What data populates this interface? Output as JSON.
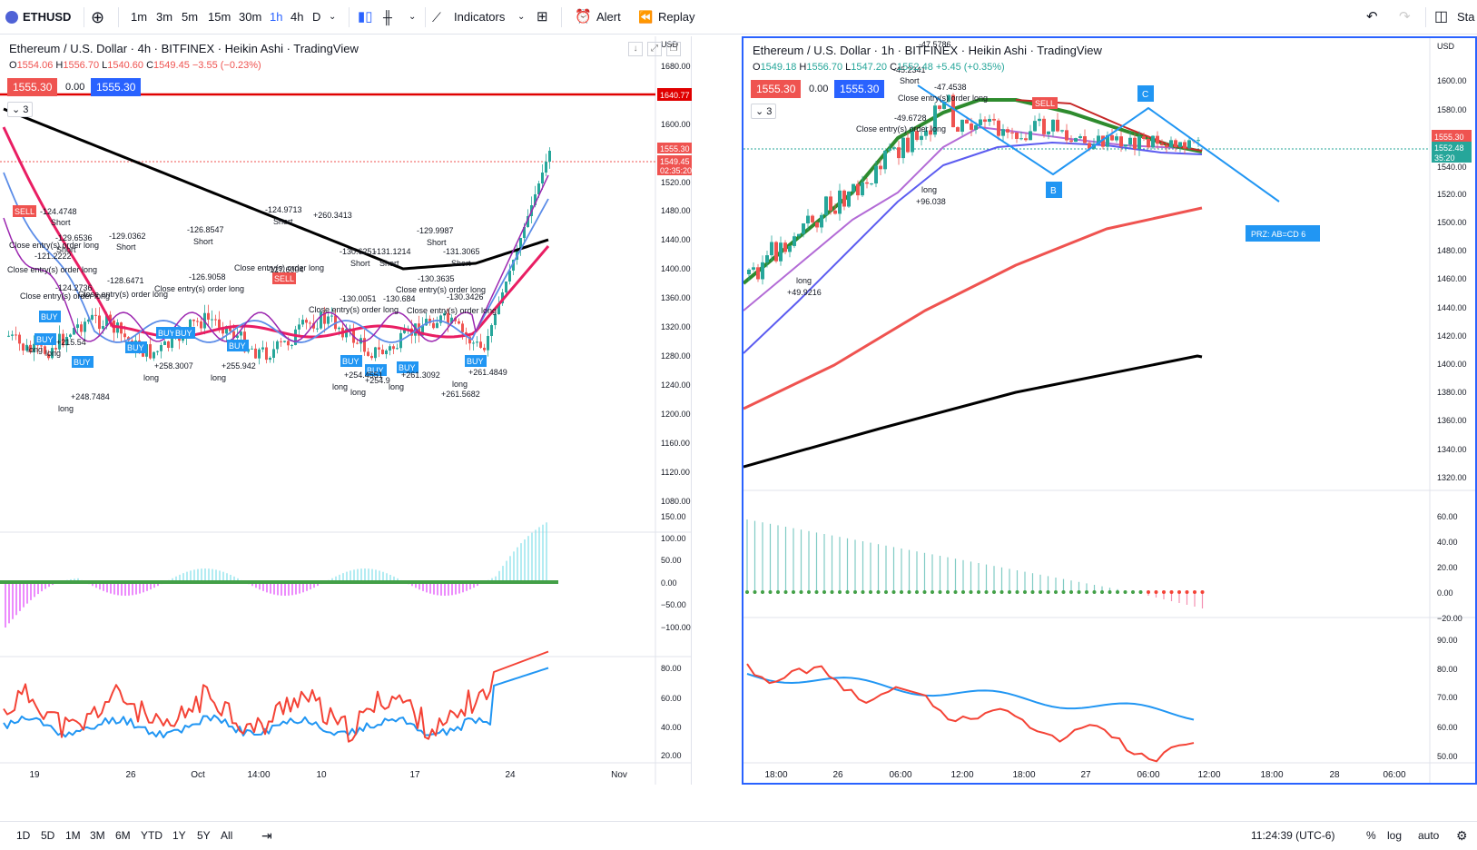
{
  "toolbar": {
    "symbol": "ETHUSD",
    "intervals": [
      "1m",
      "3m",
      "5m",
      "15m",
      "30m",
      "1h",
      "4h",
      "D"
    ],
    "active_interval": "1h",
    "indicators_label": "Indicators",
    "alert_label": "Alert",
    "replay_label": "Replay",
    "right_label": "Sta"
  },
  "left_chart": {
    "title": "Ethereum / U.S. Dollar · 4h · BITFINEX · Heikin Ashi · TradingView",
    "ohlc": {
      "o": "1554.06",
      "h": "1556.70",
      "l": "1540.60",
      "c": "1549.45",
      "chg": "−3.55 (−0.23%)"
    },
    "sell_price": "1555.30",
    "spread": "0.00",
    "buy_price": "1555.30",
    "counter": "3",
    "currency": "USD",
    "price_ticks": [
      "1680.00",
      "1640.77",
      "1600.00",
      "1555.30",
      "1549.45",
      "02:35:20",
      "1520.00",
      "1480.00",
      "1440.00",
      "1400.00",
      "1360.00",
      "1320.00",
      "1280.00",
      "1240.00",
      "1200.00",
      "1160.00",
      "1120.00",
      "1080.00"
    ],
    "macd_ticks": [
      "150.00",
      "100.00",
      "50.00",
      "0.00",
      "−50.00",
      "−100.00"
    ],
    "rsi_ticks": [
      "80.00",
      "60.00",
      "40.00",
      "20.00"
    ],
    "time_ticks": [
      "19",
      "26",
      "Oct",
      "14:00",
      "10",
      "17",
      "24",
      "Nov"
    ],
    "trade_labels": [
      "SELL",
      "-124.4748",
      "Short",
      "-129.6536",
      "Short",
      "-121.2222",
      "Close entry(s) order long",
      "-124.2736",
      "Close entry(s) order long",
      "-128.6471",
      "Close entry(s) order long",
      "-129.0362",
      "Short",
      "-126.8547",
      "Short",
      "-126.9058",
      "Close entry(s) order long",
      "-124.9713",
      "Short",
      "-127.6004",
      "Close entry(s) order long",
      "SELL",
      "-130.6251",
      "-131.1214",
      "Short",
      "Short",
      "-130.0051",
      "-130.684",
      "Close entry(s) order long",
      "Close entry(s) order long",
      "-129.9987",
      "Short",
      "-131.3065",
      "Short",
      "-130.3635",
      "-130.3426",
      "Close entry(s) order long",
      "Close entry(s) order long",
      "BUY",
      "BUY",
      "BUY",
      "BUY",
      "BUY",
      "BUY",
      "BUY",
      "BUY",
      "BUY",
      "BUY",
      "BUY",
      "long",
      "+215.54",
      "long",
      "+248.7484",
      "long",
      "+258.3007",
      "long",
      "+255.942",
      "long",
      "+254.4551",
      "long",
      "+254.9",
      "long",
      "+261.3092",
      "long",
      "+261.4849",
      "long",
      "+261.5682",
      "+260.3413"
    ]
  },
  "right_chart": {
    "title": "Ethereum / U.S. Dollar · 1h · BITFINEX · Heikin Ashi · TradingView",
    "ohlc": {
      "o": "1549.18",
      "h": "1556.70",
      "l": "1547.20",
      "c": "1552.48",
      "chg": "+5.45 (+0.35%)"
    },
    "sell_price": "1555.30",
    "spread": "0.00",
    "buy_price": "1555.30",
    "counter": "3",
    "currency": "USD",
    "price_ticks": [
      "1600.00",
      "1580.00",
      "1555.30",
      "1552.48",
      "35:20",
      "1540.00",
      "1520.00",
      "1500.00",
      "1480.00",
      "1460.00",
      "1440.00",
      "1420.00",
      "1400.00",
      "1380.00",
      "1360.00",
      "1340.00",
      "1320.00"
    ],
    "macd_ticks": [
      "60.00",
      "40.00",
      "20.00",
      "0.00",
      "−20.00"
    ],
    "rsi_ticks": [
      "90.00",
      "80.00",
      "70.00",
      "60.00",
      "50.00"
    ],
    "time_ticks": [
      "18:00",
      "26",
      "06:00",
      "12:00",
      "18:00",
      "27",
      "06:00",
      "12:00",
      "18:00",
      "28",
      "06:00"
    ],
    "pattern_points": [
      "B",
      "C"
    ],
    "prz_label": "PRZ: AB=CD 6",
    "trade_labels": [
      "-47.5786",
      "-45.2341",
      "Short",
      "-47.4538",
      "Close entry(s) order long",
      "-49.6728",
      "Close entry(s) order long",
      "SELL",
      "long",
      "+96.038",
      "long",
      "+49.9216"
    ]
  },
  "bottombar": {
    "ranges": [
      "1D",
      "5D",
      "1M",
      "3M",
      "6M",
      "YTD",
      "1Y",
      "5Y",
      "All"
    ],
    "time": "11:24:39 (UTC-6)",
    "opts": [
      "%",
      "log",
      "auto"
    ]
  },
  "colors": {
    "accent": "#2962ff",
    "up": "#26a69a",
    "down": "#ef5350",
    "black": "#000000"
  }
}
